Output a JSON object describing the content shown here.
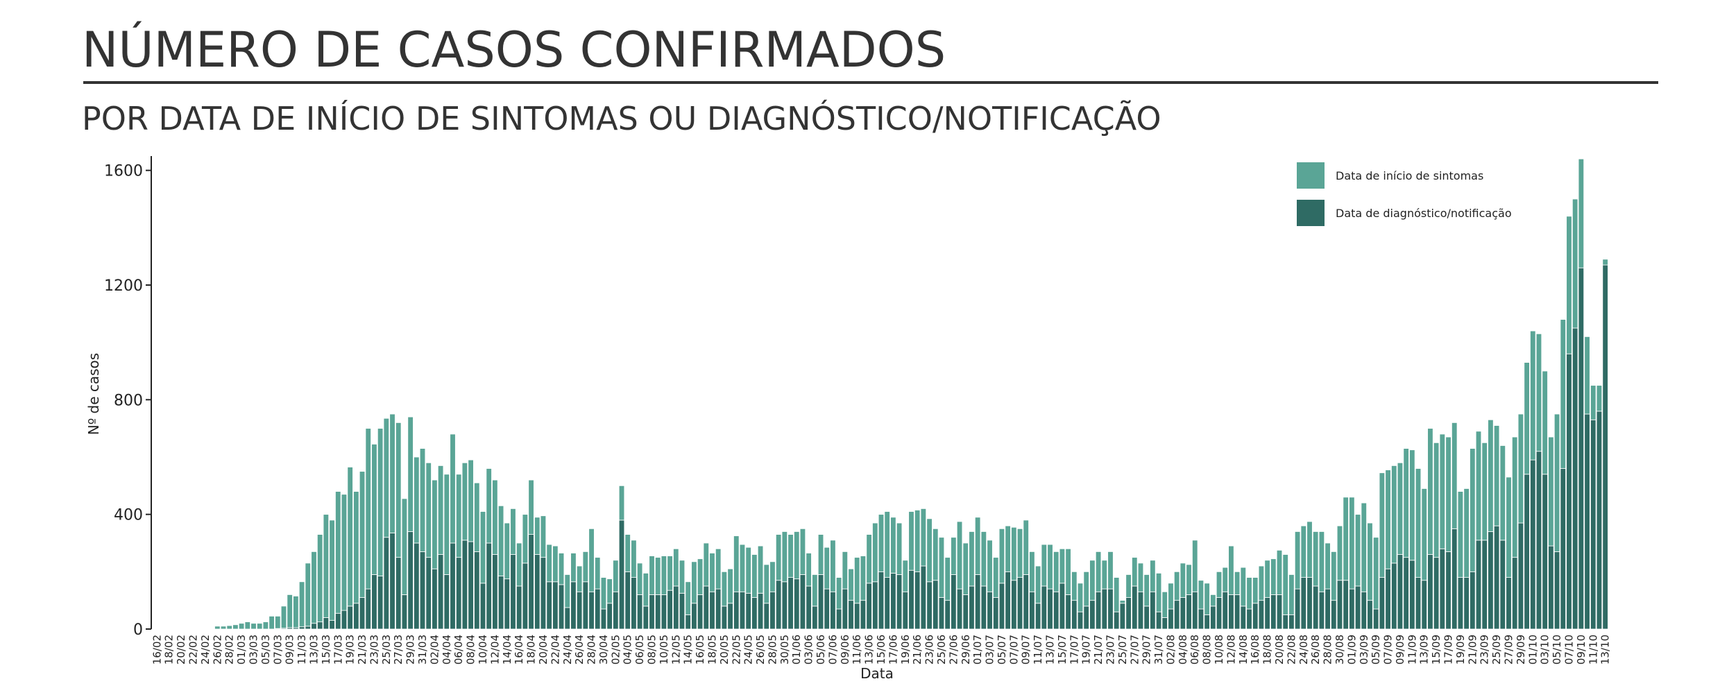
{
  "header": {
    "title": "NÚMERO DE CASOS CONFIRMADOS",
    "subtitle": "POR DATA DE INÍCIO DE SINTOMAS OU DIAGNÓSTICO/NOTIFICAÇÃO"
  },
  "chart_data": {
    "type": "bar",
    "stacked": true,
    "x_label": "Data",
    "y_label": "Nº de casos",
    "categories": [
      "16/02",
      null,
      "18/02",
      null,
      "20/02",
      null,
      "22/02",
      null,
      "24/02",
      null,
      "26/02",
      null,
      "28/02",
      null,
      "01/03",
      null,
      "03/03",
      null,
      "05/03",
      null,
      "07/03",
      null,
      "09/03",
      null,
      "11/03",
      null,
      "13/03",
      null,
      "15/03",
      null,
      "17/03",
      null,
      "19/03",
      null,
      "21/03",
      null,
      "23/03",
      null,
      "25/03",
      null,
      "27/03",
      null,
      "29/03",
      null,
      "31/03",
      null,
      "02/04",
      null,
      "04/04",
      null,
      "06/04",
      null,
      "08/04",
      null,
      "10/04",
      null,
      "12/04",
      null,
      "14/04",
      null,
      "16/04",
      null,
      "18/04",
      null,
      "20/04",
      null,
      "22/04",
      null,
      "24/04",
      null,
      "26/04",
      null,
      "28/04",
      null,
      "30/04",
      null,
      "02/05",
      null,
      "04/05",
      null,
      "06/05",
      null,
      "08/05",
      null,
      "10/05",
      null,
      "12/05",
      null,
      "14/05",
      null,
      "16/05",
      null,
      "18/05",
      null,
      "20/05",
      null,
      "22/05",
      null,
      "24/05",
      null,
      "26/05",
      null,
      "28/05",
      null,
      "30/05",
      null,
      "01/06",
      null,
      "03/06",
      null,
      "05/06",
      null,
      "07/06",
      null,
      "09/06",
      null,
      "11/06",
      null,
      "13/06",
      null,
      "15/06",
      null,
      "17/06",
      null,
      "19/06",
      null,
      "21/06",
      null,
      "23/06",
      null,
      "25/06",
      null,
      "27/06",
      null,
      "29/06",
      null,
      "01/07",
      null,
      "03/07",
      null,
      "05/07",
      null,
      "07/07",
      null,
      "09/07",
      null,
      "11/07",
      null,
      "13/07",
      null,
      "15/07",
      null,
      "17/07",
      null,
      "19/07",
      null,
      "21/07",
      null,
      "23/07",
      null,
      "25/07",
      null,
      "27/07",
      null,
      "29/07",
      null,
      "31/07",
      null,
      "02/08",
      null,
      "04/08",
      null,
      "06/08",
      null,
      "08/08",
      null,
      "10/08",
      null,
      "12/08",
      null,
      "14/08",
      null,
      "16/08",
      null,
      "18/08",
      null,
      "20/08",
      null,
      "22/08",
      null,
      "24/08",
      null,
      "26/08",
      null,
      "28/08",
      null,
      "30/08",
      null,
      "01/09",
      null,
      "03/09",
      null,
      "05/09",
      null,
      "07/09",
      null,
      "09/09",
      null,
      "11/09",
      null,
      "13/09",
      null,
      "15/09",
      null,
      "17/09",
      null,
      "19/09",
      null,
      "21/09",
      null,
      "23/09",
      null,
      "25/09",
      null,
      "27/09",
      null,
      "29/09",
      null,
      "01/10",
      null,
      "03/10",
      null,
      "05/10",
      null,
      "07/10",
      null,
      "09/10",
      null,
      "11/10",
      null,
      "13/10"
    ],
    "series": [
      {
        "name": "Data de início de sintomas",
        "color": "#5aa596",
        "values": [
          0,
          0,
          0,
          0,
          0,
          0,
          0,
          0,
          0,
          0,
          10,
          10,
          12,
          15,
          20,
          25,
          20,
          20,
          25,
          45,
          43,
          77,
          115,
          110,
          157,
          220,
          250,
          305,
          360,
          350,
          425,
          405,
          485,
          390,
          440,
          560,
          455,
          515,
          415,
          415,
          470,
          335,
          400,
          300,
          360,
          330,
          310,
          310,
          350,
          380,
          290,
          270,
          285,
          240,
          250,
          260,
          260,
          245,
          195,
          160,
          150,
          170,
          190,
          130,
          145,
          130,
          125,
          110,
          115,
          100,
          90,
          105,
          220,
          110,
          110,
          85,
          110,
          120,
          130,
          130,
          110,
          115,
          135,
          130,
          135,
          120,
          130,
          115,
          115,
          145,
          125,
          150,
          135,
          140,
          120,
          120,
          195,
          165,
          160,
          150,
          165,
          135,
          105,
          160,
          175,
          150,
          165,
          160,
          115,
          110,
          140,
          145,
          180,
          110,
          130,
          110,
          160,
          155,
          170,
          205,
          200,
          230,
          195,
          180,
          110,
          205,
          215,
          200,
          220,
          180,
          210,
          150,
          130,
          235,
          180,
          190,
          200,
          190,
          180,
          140,
          190,
          160,
          185,
          170,
          190,
          140,
          130,
          145,
          155,
          140,
          120,
          160,
          100,
          100,
          120,
          140,
          140,
          100,
          130,
          120,
          10,
          80,
          100,
          100,
          110,
          110,
          135,
          90,
          90,
          100,
          120,
          105,
          180,
          100,
          110,
          40,
          90,
          85,
          170,
          80,
          135,
          110,
          90,
          120,
          130,
          125,
          155,
          210,
          140,
          200,
          180,
          195,
          190,
          210,
          160,
          170,
          190,
          290,
          320,
          250,
          310,
          270,
          250,
          365,
          345,
          340,
          320,
          380,
          385,
          380,
          320,
          440,
          400,
          400,
          400,
          370,
          300,
          310,
          430,
          380,
          340,
          390,
          350,
          330,
          350,
          420,
          380,
          390,
          450,
          410,
          360,
          380,
          480,
          520,
          480,
          450,
          380,
          270,
          120,
          90,
          20
        ]
      },
      {
        "name": "Data de diagnóstico/notificação",
        "color": "#2f6b64",
        "values": [
          0,
          0,
          0,
          0,
          0,
          0,
          0,
          0,
          0,
          0,
          0,
          0,
          0,
          0,
          0,
          0,
          0,
          0,
          0,
          0,
          2,
          3,
          5,
          5,
          8,
          10,
          20,
          25,
          40,
          30,
          55,
          65,
          80,
          90,
          110,
          140,
          190,
          185,
          320,
          335,
          250,
          120,
          340,
          300,
          270,
          250,
          210,
          260,
          190,
          300,
          250,
          310,
          305,
          270,
          160,
          300,
          260,
          185,
          175,
          260,
          150,
          230,
          330,
          260,
          250,
          165,
          165,
          155,
          75,
          165,
          130,
          165,
          130,
          140,
          70,
          90,
          130,
          380,
          200,
          180,
          120,
          80,
          120,
          120,
          120,
          135,
          150,
          125,
          50,
          90,
          120,
          150,
          130,
          140,
          80,
          90,
          130,
          130,
          125,
          110,
          125,
          90,
          130,
          170,
          165,
          180,
          175,
          190,
          150,
          80,
          190,
          140,
          130,
          70,
          140,
          100,
          90,
          100,
          160,
          165,
          200,
          180,
          195,
          190,
          130,
          205,
          200,
          220,
          165,
          170,
          110,
          100,
          190,
          140,
          120,
          150,
          190,
          150,
          130,
          110,
          160,
          200,
          170,
          180,
          190,
          130,
          90,
          150,
          140,
          130,
          160,
          120,
          100,
          60,
          80,
          100,
          130,
          140,
          140,
          60,
          90,
          110,
          150,
          130,
          80,
          130,
          60,
          40,
          70,
          100,
          110,
          120,
          130,
          70,
          50,
          80,
          110,
          130,
          120,
          120,
          80,
          70,
          90,
          100,
          110,
          120,
          120,
          50,
          50,
          140,
          180,
          180,
          150,
          130,
          140,
          100,
          170,
          170,
          140,
          150,
          130,
          100,
          70,
          180,
          210,
          230,
          260,
          250,
          240,
          180,
          170,
          260,
          250,
          280,
          270,
          350,
          180,
          180,
          200,
          310,
          310,
          340,
          360,
          310,
          180,
          250,
          370,
          540,
          590,
          620,
          540,
          290,
          270,
          560,
          960,
          1050,
          1260,
          750,
          730,
          760,
          1270
        ]
      }
    ],
    "ylim": [
      0,
      1650
    ],
    "yticks": [
      0,
      400,
      800,
      1200,
      1600
    ],
    "grid": false,
    "legend": "top-right"
  }
}
